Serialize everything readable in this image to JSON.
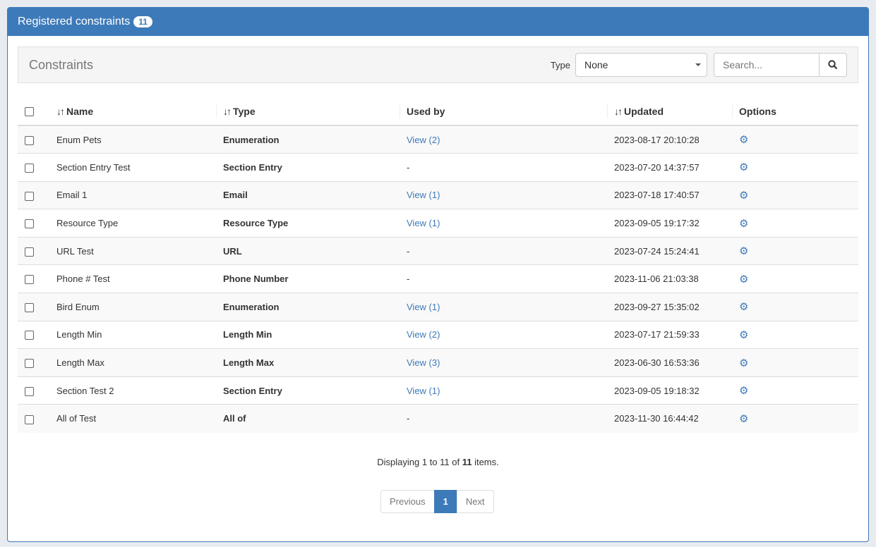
{
  "panel": {
    "title": "Registered constraints",
    "count": "11"
  },
  "toolbar": {
    "title": "Constraints",
    "type_label": "Type",
    "type_value": "None",
    "search_placeholder": "Search..."
  },
  "table": {
    "headers": {
      "name": "Name",
      "type": "Type",
      "used_by": "Used by",
      "updated": "Updated",
      "options": "Options"
    },
    "rows": [
      {
        "name": "Enum Pets",
        "type": "Enumeration",
        "used_by": "View (2)",
        "updated": "2023-08-17 20:10:28"
      },
      {
        "name": "Section Entry Test",
        "type": "Section Entry",
        "used_by": "-",
        "updated": "2023-07-20 14:37:57"
      },
      {
        "name": "Email 1",
        "type": "Email",
        "used_by": "View (1)",
        "updated": "2023-07-18 17:40:57"
      },
      {
        "name": "Resource Type",
        "type": "Resource Type",
        "used_by": "View (1)",
        "updated": "2023-09-05 19:17:32"
      },
      {
        "name": "URL Test",
        "type": "URL",
        "used_by": "-",
        "updated": "2023-07-24 15:24:41"
      },
      {
        "name": "Phone # Test",
        "type": "Phone Number",
        "used_by": "-",
        "updated": "2023-11-06 21:03:38"
      },
      {
        "name": "Bird Enum",
        "type": "Enumeration",
        "used_by": "View (1)",
        "updated": "2023-09-27 15:35:02"
      },
      {
        "name": "Length Min",
        "type": "Length Min",
        "used_by": "View (2)",
        "updated": "2023-07-17 21:59:33"
      },
      {
        "name": "Length Max",
        "type": "Length Max",
        "used_by": "View (3)",
        "updated": "2023-06-30 16:53:36"
      },
      {
        "name": "Section Test 2",
        "type": "Section Entry",
        "used_by": "View (1)",
        "updated": "2023-09-05 19:18:32"
      },
      {
        "name": "All of Test",
        "type": "All of",
        "used_by": "-",
        "updated": "2023-11-30 16:44:42"
      }
    ]
  },
  "footer": {
    "prefix": "Displaying ",
    "from": "1",
    "to_word": " to ",
    "to": "11",
    "of_word": " of ",
    "total": "11",
    "suffix": " items."
  },
  "pagination": {
    "previous": "Previous",
    "current": "1",
    "next": "Next"
  }
}
